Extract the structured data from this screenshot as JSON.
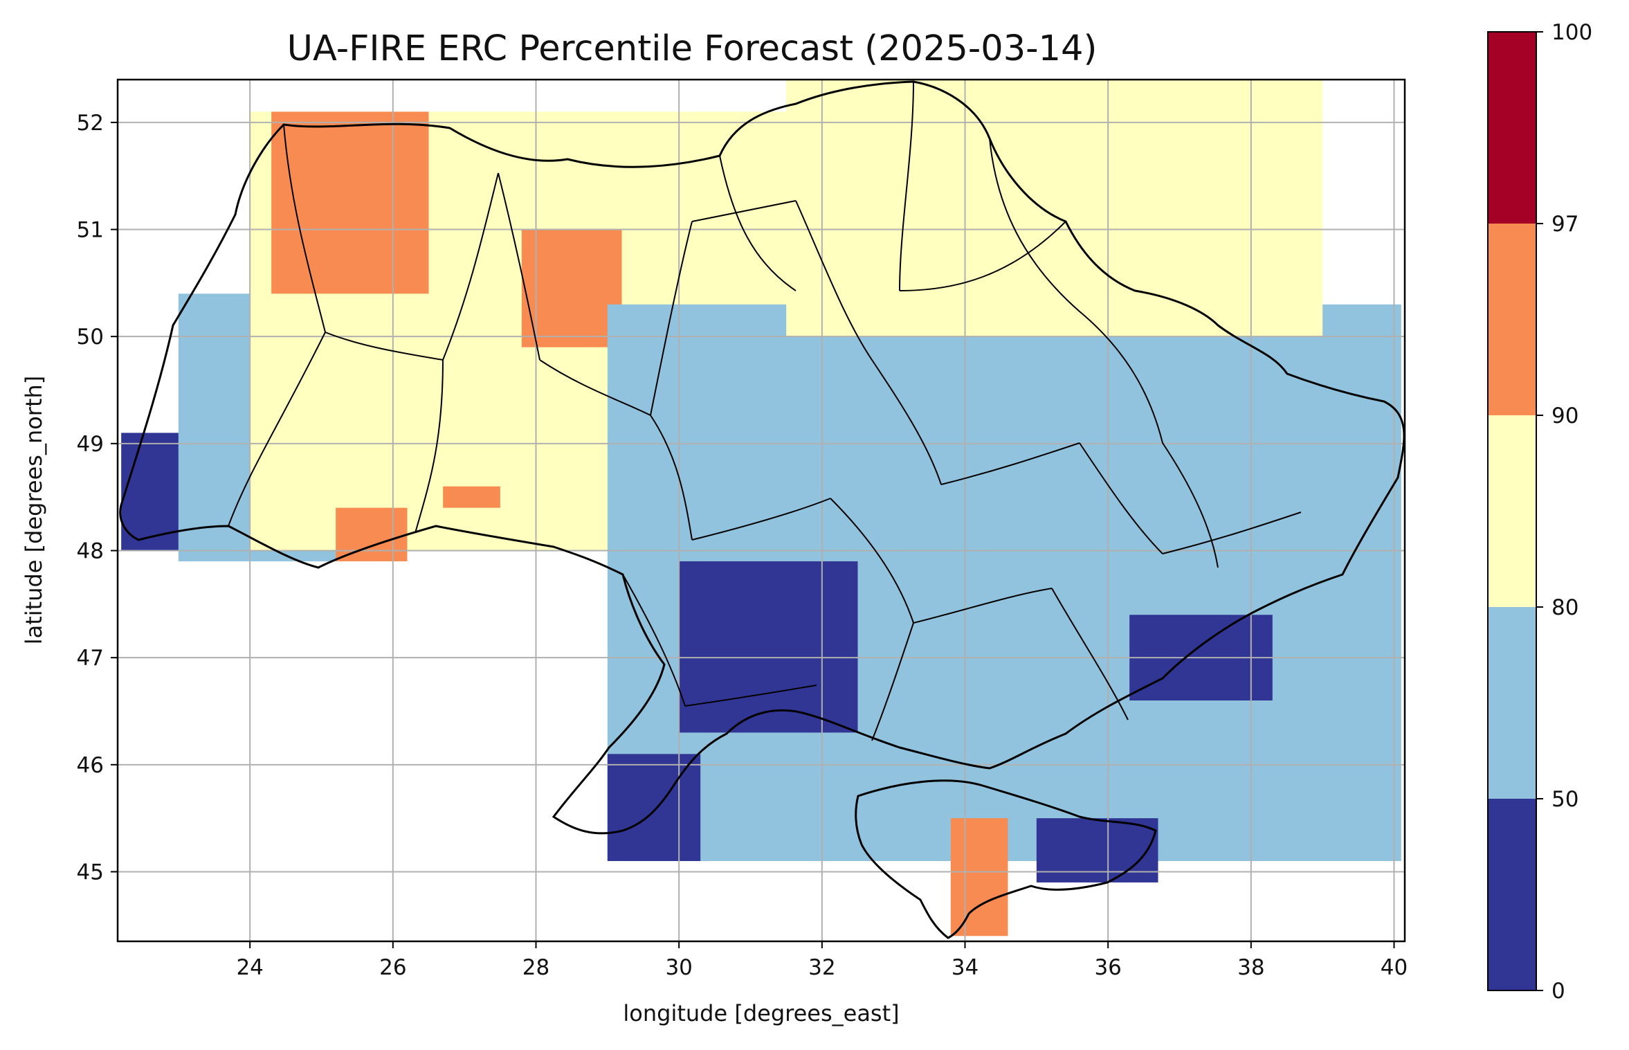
{
  "chart_data": {
    "type": "heatmap",
    "title": "UA-FIRE ERC Percentile Forecast (2025-03-14)",
    "xlabel": "longitude [degrees_east]",
    "ylabel": "latitude [degrees_north]",
    "xlim": [
      22.15,
      40.15
    ],
    "ylim": [
      44.35,
      52.4
    ],
    "xticks": [
      "24",
      "26",
      "28",
      "30",
      "32",
      "34",
      "36",
      "38",
      "40"
    ],
    "yticks": [
      "45",
      "46",
      "47",
      "48",
      "49",
      "50",
      "51",
      "52"
    ],
    "grid": true,
    "colorbar": {
      "boundaries": [
        0,
        50,
        80,
        90,
        97,
        100
      ],
      "labels": [
        "0",
        "50",
        "80",
        "90",
        "97",
        "100"
      ],
      "colors": [
        "#313695",
        "#91c2de",
        "#ffffbf",
        "#f78b52",
        "#a50026"
      ]
    },
    "region_outline": "Ukraine with oblast boundaries",
    "cells": [
      {
        "lon": [
          22.2,
          23.5
        ],
        "lat": [
          48.0,
          49.1
        ],
        "class": 0
      },
      {
        "lon": [
          23.0,
          25.5
        ],
        "lat": [
          47.9,
          50.4
        ],
        "class": 1
      },
      {
        "lon": [
          24.0,
          33.0
        ],
        "lat": [
          48.0,
          52.1
        ],
        "class": 2
      },
      {
        "lon": [
          24.3,
          26.5
        ],
        "lat": [
          50.4,
          52.1
        ],
        "class": 3
      },
      {
        "lon": [
          27.8,
          29.2
        ],
        "lat": [
          49.9,
          51.0
        ],
        "class": 3
      },
      {
        "lon": [
          25.2,
          26.2
        ],
        "lat": [
          47.9,
          48.4
        ],
        "class": 3
      },
      {
        "lon": [
          26.7,
          27.5
        ],
        "lat": [
          48.4,
          48.6
        ],
        "class": 3
      },
      {
        "lon": [
          29.0,
          40.1
        ],
        "lat": [
          45.1,
          50.3
        ],
        "class": 1
      },
      {
        "lon": [
          30.0,
          32.5
        ],
        "lat": [
          46.3,
          47.9
        ],
        "class": 0
      },
      {
        "lon": [
          29.0,
          30.3
        ],
        "lat": [
          45.1,
          46.1
        ],
        "class": 0
      },
      {
        "lon": [
          31.5,
          39.0
        ],
        "lat": [
          50.0,
          52.4
        ],
        "class": 2
      },
      {
        "lon": [
          33.8,
          34.6
        ],
        "lat": [
          44.4,
          45.5
        ],
        "class": 3
      },
      {
        "lon": [
          35.0,
          36.7
        ],
        "lat": [
          44.9,
          45.5
        ],
        "class": 0
      },
      {
        "lon": [
          36.3,
          38.3
        ],
        "lat": [
          46.6,
          47.4
        ],
        "class": 0
      }
    ]
  }
}
